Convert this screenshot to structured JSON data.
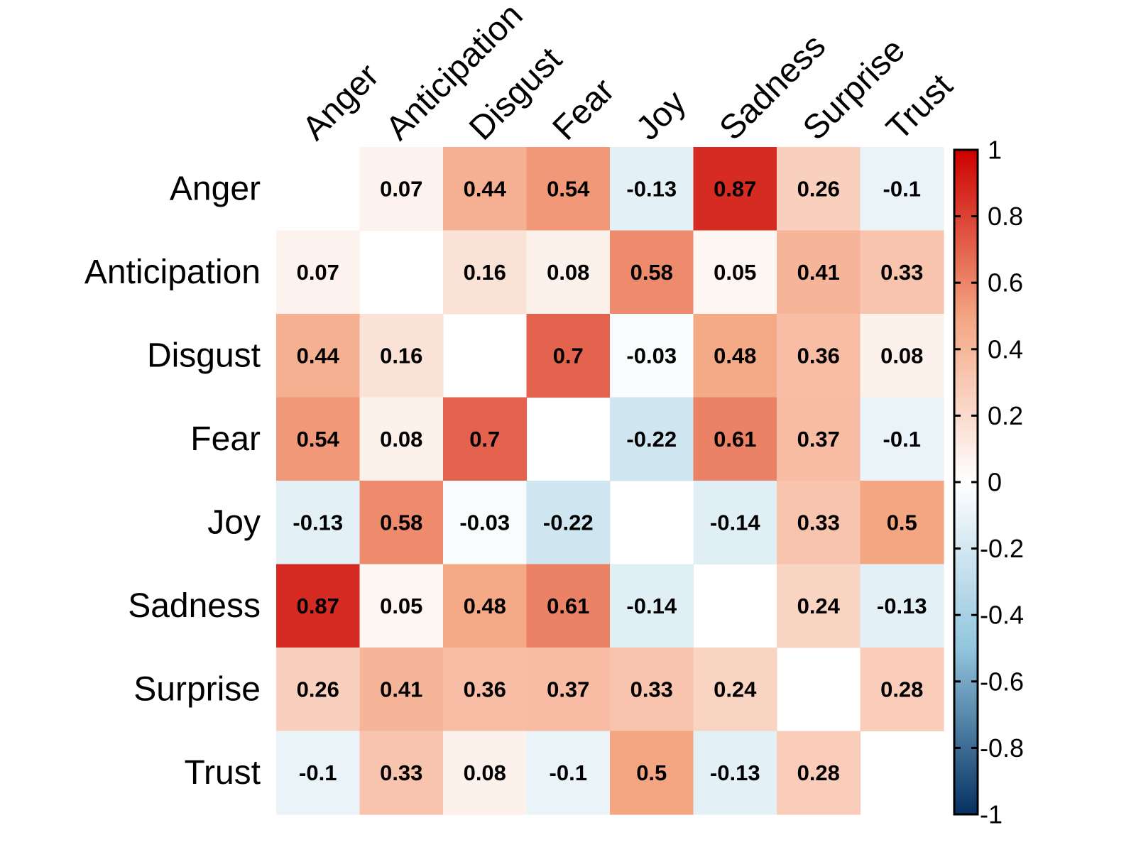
{
  "chart_data": {
    "type": "heatmap",
    "variables": [
      "Anger",
      "Anticipation",
      "Disgust",
      "Fear",
      "Joy",
      "Sadness",
      "Surprise",
      "Trust"
    ],
    "matrix": [
      [
        null,
        0.07,
        0.44,
        0.54,
        -0.13,
        0.87,
        0.26,
        -0.1
      ],
      [
        0.07,
        null,
        0.16,
        0.08,
        0.58,
        0.05,
        0.41,
        0.33
      ],
      [
        0.44,
        0.16,
        null,
        0.7,
        -0.03,
        0.48,
        0.36,
        0.08
      ],
      [
        0.54,
        0.08,
        0.7,
        null,
        -0.22,
        0.61,
        0.37,
        -0.1
      ],
      [
        -0.13,
        0.58,
        -0.03,
        -0.22,
        null,
        -0.14,
        0.33,
        0.5
      ],
      [
        0.87,
        0.05,
        0.48,
        0.61,
        -0.14,
        null,
        0.24,
        -0.13
      ],
      [
        0.26,
        0.41,
        0.36,
        0.37,
        0.33,
        0.24,
        null,
        0.28
      ],
      [
        -0.1,
        0.33,
        0.08,
        -0.1,
        0.5,
        -0.13,
        0.28,
        null
      ]
    ],
    "value_labels": [
      [
        "",
        "0.07",
        "0.44",
        "0.54",
        "-0.13",
        "0.87",
        "0.26",
        "-0.1"
      ],
      [
        "0.07",
        "",
        "0.16",
        "0.08",
        "0.58",
        "0.05",
        "0.41",
        "0.33"
      ],
      [
        "0.44",
        "0.16",
        "",
        "0.7",
        "-0.03",
        "0.48",
        "0.36",
        "0.08"
      ],
      [
        "0.54",
        "0.08",
        "0.7",
        "",
        "-0.22",
        "0.61",
        "0.37",
        "-0.1"
      ],
      [
        "-0.13",
        "0.58",
        "-0.03",
        "-0.22",
        "",
        "-0.14",
        "0.33",
        "0.5"
      ],
      [
        "0.87",
        "0.05",
        "0.48",
        "0.61",
        "-0.14",
        "",
        "0.24",
        "-0.13"
      ],
      [
        "0.26",
        "0.41",
        "0.36",
        "0.37",
        "0.33",
        "0.24",
        "",
        "0.28"
      ],
      [
        "-0.1",
        "0.33",
        "0.08",
        "-0.1",
        "0.5",
        "-0.13",
        "0.28",
        ""
      ]
    ],
    "colorbar": {
      "range": [
        -1,
        1
      ],
      "ticks": [
        1,
        0.8,
        0.6,
        0.4,
        0.2,
        0,
        -0.2,
        -0.4,
        -0.6,
        -0.8,
        -1
      ],
      "tick_labels": [
        "1",
        "0.8",
        "0.6",
        "0.4",
        "0.2",
        "0",
        "-0.2",
        "-0.4",
        "-0.6",
        "-0.8",
        "-1"
      ],
      "colors": {
        "negative_end": "#053061",
        "mid_negative": "#92C5DE",
        "neutral": "#FFFFFF",
        "mid_positive": "#F4A582",
        "positive_end": "#CC0000"
      }
    },
    "diagonal": "blank",
    "legend_placement": "right",
    "grid": false
  }
}
